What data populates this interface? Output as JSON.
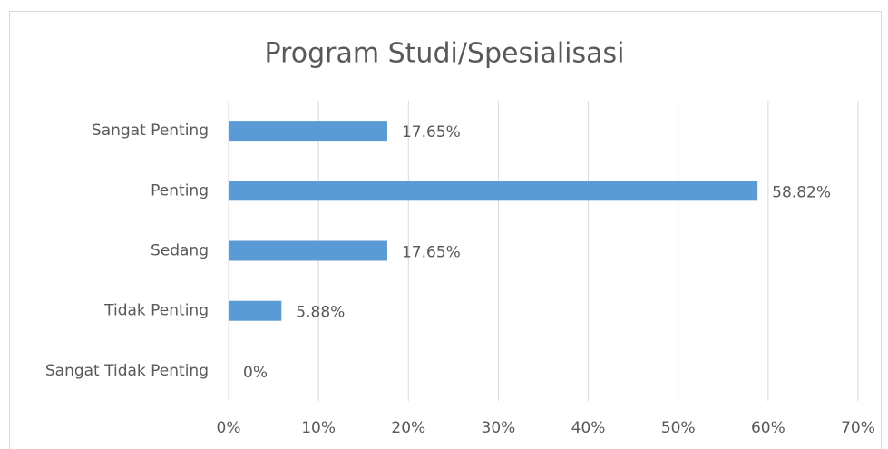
{
  "chart_data": {
    "type": "bar",
    "orientation": "horizontal",
    "title": "Program Studi/Spesialisasi",
    "categories": [
      "Sangat Penting",
      "Penting",
      "Sedang",
      "Tidak Penting",
      "Sangat Tidak Penting"
    ],
    "values": [
      17.65,
      58.82,
      17.65,
      5.88,
      0
    ],
    "value_labels": [
      "17.65%",
      "58.82%",
      "17.65%",
      "5.88%",
      "0%"
    ],
    "color": "#5b9bd5",
    "xlim": [
      0,
      70
    ],
    "xticks": [
      {
        "value": 0,
        "label": "0%"
      },
      {
        "value": 10,
        "label": "10%"
      },
      {
        "value": 20,
        "label": "20%"
      },
      {
        "value": 30,
        "label": "30%"
      },
      {
        "value": 40,
        "label": "40%"
      },
      {
        "value": 50,
        "label": "50%"
      },
      {
        "value": 60,
        "label": "60%"
      },
      {
        "value": 70,
        "label": "70%"
      }
    ],
    "grid": true
  }
}
